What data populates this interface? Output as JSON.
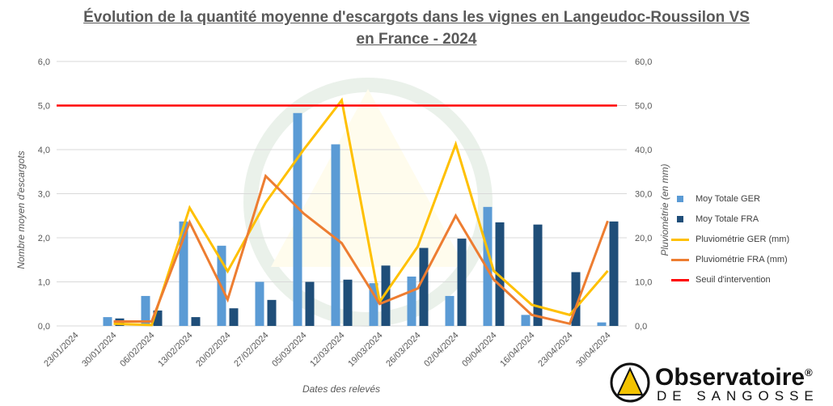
{
  "chart_data": {
    "type": "bar+line",
    "title": "Évolution de la quantité moyenne d'escargots dans les vignes en Langeudoc-Roussilon VS en France - 2024",
    "xlabel": "Dates des relevés",
    "ylabel": "Nombre moyen d'escargots",
    "y2label": "Pluviométrie (en mm)",
    "ylim": [
      0,
      6
    ],
    "y2lim": [
      0,
      60
    ],
    "yticks": [
      "0,0",
      "1,0",
      "2,0",
      "3,0",
      "4,0",
      "5,0",
      "6,0"
    ],
    "y2ticks": [
      "0,0",
      "10,0",
      "20,0",
      "30,0",
      "40,0",
      "50,0",
      "60,0"
    ],
    "categories": [
      "23/01/2024",
      "30/01/2024",
      "06/02/2024",
      "13/02/2024",
      "20/02/2024",
      "27/02/2024",
      "05/03/2024",
      "12/03/2024",
      "19/03/2024",
      "26/03/2024",
      "02/04/2024",
      "09/04/2024",
      "16/04/2024",
      "23/04/2024",
      "30/04/2024"
    ],
    "series": [
      {
        "name": "Moy Totale GER",
        "type": "bar",
        "axis": "left",
        "color": "#5b9bd5",
        "values": [
          null,
          0.2,
          0.68,
          2.37,
          1.82,
          1.0,
          4.83,
          4.12,
          0.97,
          1.12,
          0.68,
          2.7,
          0.25,
          0,
          0.08
        ]
      },
      {
        "name": "Moy Totale FRA",
        "type": "bar",
        "axis": "left",
        "color": "#1f4e79",
        "values": [
          null,
          0.17,
          0.35,
          0.2,
          0.4,
          0.59,
          1.0,
          1.05,
          1.37,
          1.77,
          1.98,
          2.35,
          2.3,
          1.22,
          2.37
        ]
      },
      {
        "name": "Pluviométrie GER (mm)",
        "type": "line",
        "axis": "right",
        "color": "#ffc000",
        "values": [
          null,
          0.5,
          0.2,
          26.8,
          12.4,
          28,
          40,
          51.2,
          5.5,
          18,
          41.2,
          12.5,
          4.8,
          2.5,
          12.5
        ]
      },
      {
        "name": "Pluviométrie FRA (mm)",
        "type": "line",
        "axis": "right",
        "color": "#ed7d31",
        "values": [
          null,
          1,
          1,
          23.5,
          6,
          34,
          25.5,
          18.8,
          5,
          8.5,
          25,
          10.5,
          2.5,
          0.5,
          23.8
        ]
      },
      {
        "name": "Seuil d'intervention",
        "type": "line",
        "axis": "right",
        "color": "#ff0000",
        "values": [
          50,
          50,
          50,
          50,
          50,
          50,
          50,
          50,
          50,
          50,
          50,
          50,
          50,
          50,
          50
        ]
      }
    ],
    "grid": true,
    "legend": "right"
  },
  "logo": {
    "name": "Observatoire",
    "reg": "®",
    "sub": "DE SANGOSSE"
  }
}
